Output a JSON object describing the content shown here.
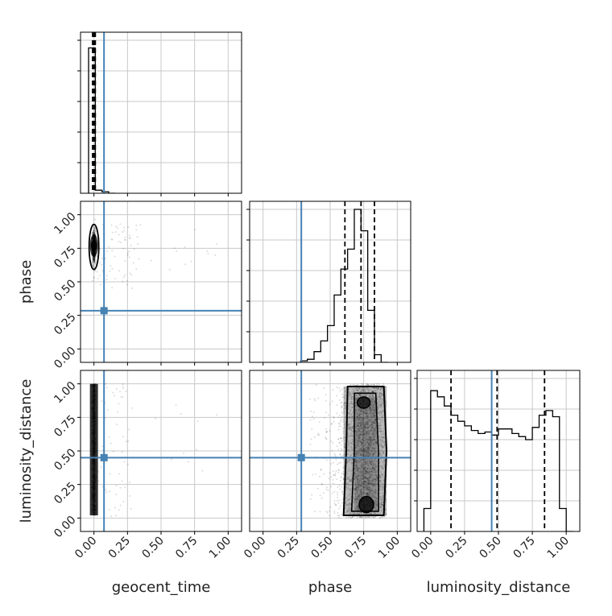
{
  "chart_data": {
    "type": "corner",
    "parameters": [
      "geocent_time",
      "phase",
      "luminosity_distance"
    ],
    "axis_labels": {
      "x": [
        "geocent_time",
        "phase",
        "luminosity_distance"
      ],
      "y": [
        "phase",
        "luminosity_distance"
      ]
    },
    "tick_values": [
      0.0,
      0.25,
      0.5,
      0.75,
      1.0
    ],
    "tick_labels": [
      "0.00",
      "0.25",
      "0.50",
      "0.75",
      "1.00"
    ],
    "axis_range": [
      -0.1,
      1.1
    ],
    "grid": true,
    "truths": {
      "geocent_time": 0.075,
      "phase": 0.285,
      "luminosity_distance": 0.45
    },
    "truth_color": "#4682b4",
    "quantiles": {
      "geocent_time": [
        -0.01,
        0.0,
        0.01
      ],
      "phase": [
        0.61,
        0.73,
        0.83
      ],
      "luminosity_distance": [
        0.15,
        0.49,
        0.84
      ]
    },
    "histograms": {
      "geocent_time": {
        "edges": [
          -0.04,
          0.01,
          0.06,
          0.11,
          0.16
        ],
        "values": [
          0.95,
          0.02,
          0.01,
          0.0
        ]
      },
      "phase": {
        "edges": [
          0.28,
          0.33,
          0.38,
          0.43,
          0.48,
          0.53,
          0.58,
          0.63,
          0.68,
          0.73,
          0.78,
          0.83,
          0.88,
          0.93
        ],
        "values": [
          0.01,
          0.02,
          0.07,
          0.14,
          0.24,
          0.44,
          0.61,
          0.74,
          1.0,
          0.86,
          0.34,
          0.05,
          0.0
        ]
      },
      "luminosity_distance": {
        "edges": [
          -0.05,
          0.0,
          0.05,
          0.1,
          0.15,
          0.2,
          0.25,
          0.3,
          0.35,
          0.4,
          0.45,
          0.5,
          0.55,
          0.6,
          0.65,
          0.7,
          0.75,
          0.8,
          0.85,
          0.9,
          0.95,
          1.0,
          1.05
        ],
        "values": [
          0.15,
          0.92,
          0.88,
          0.82,
          0.76,
          0.72,
          0.69,
          0.66,
          0.64,
          0.65,
          0.63,
          0.67,
          0.67,
          0.64,
          0.62,
          0.6,
          0.68,
          0.76,
          0.79,
          0.75,
          0.15,
          0.0
        ]
      }
    },
    "scatter": {
      "phase_vs_geocent_time": {
        "core": [
          0.0,
          0.75
        ],
        "spread": [
          0.01,
          0.08
        ]
      },
      "luminosity_distance_vs_geocent_time": {
        "range_y": [
          0.02,
          1.0
        ]
      },
      "luminosity_distance_vs_phase": {
        "range_x": [
          0.45,
          0.93
        ],
        "range_y": [
          0.0,
          1.0
        ]
      }
    }
  }
}
